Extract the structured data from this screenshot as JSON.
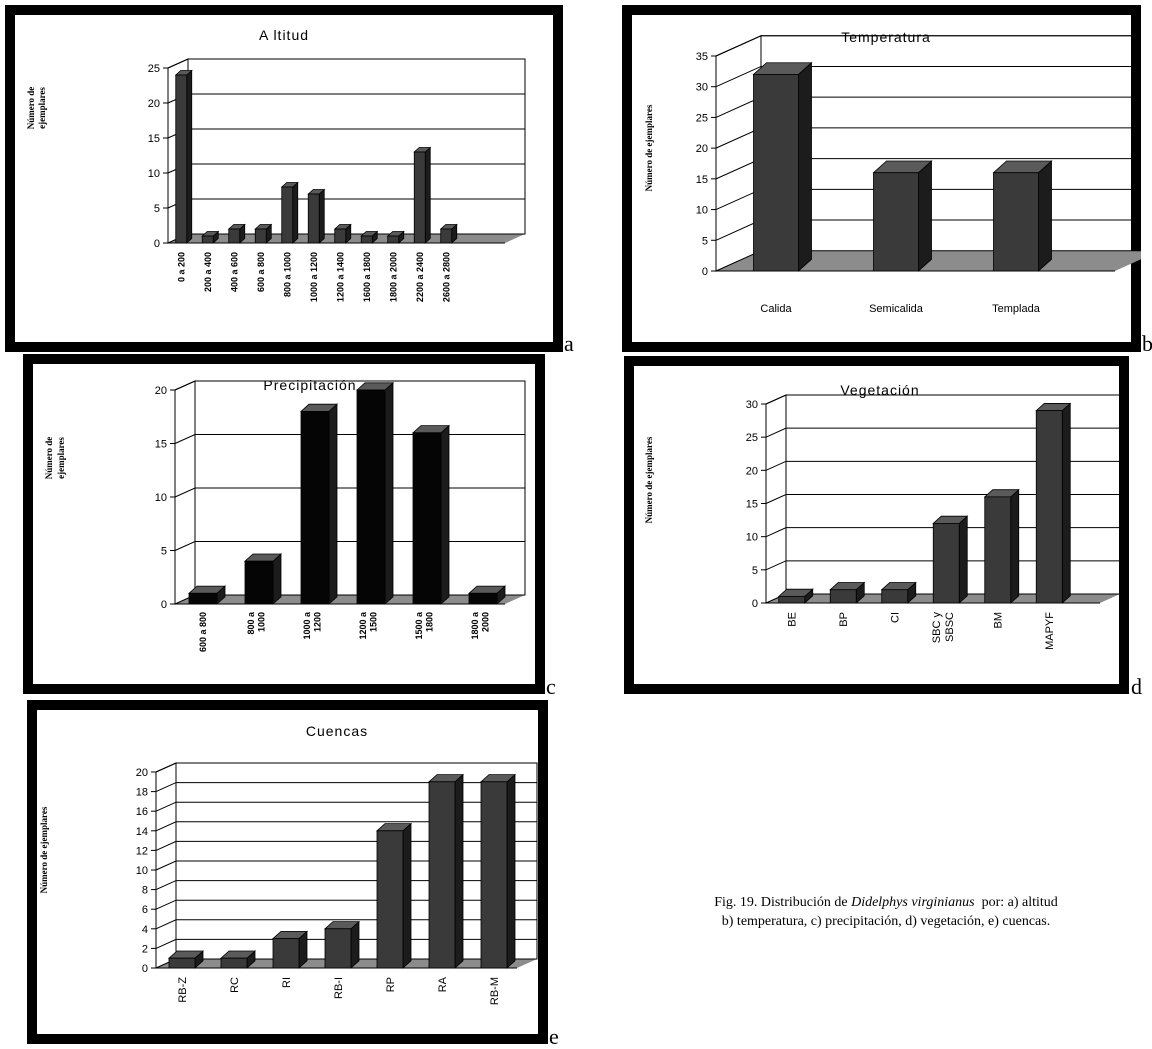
{
  "caption": {
    "prefix": "Fig. 19. Distribución de ",
    "species": "Didelphys virginianus",
    "line1_suffix": "  por: a) altitud",
    "line2": "b) temperatura, c) precipitación, d) vegetación, e) cuencas."
  },
  "colors": {
    "bar_front": "#3a3a3a",
    "bar_side": "#1c1c1c",
    "bar_top": "#5a5a5a",
    "bar_front_c": "#050505",
    "floor": "#8c8c8c",
    "frame": "#000000"
  },
  "chart_data": [
    {
      "id": "a",
      "letter": "a",
      "type": "bar",
      "title": "A ltitud",
      "ylabel": [
        "Número de",
        "ejemplares"
      ],
      "ylim": [
        0,
        25
      ],
      "yticks": [
        0,
        5,
        10,
        15,
        20,
        25
      ],
      "categories": [
        "0 a 200",
        "200 a 400",
        "400 a 600",
        "600 a 800",
        "800 a 1000",
        "1000 a 1200",
        "1200 a 1400",
        "1600 a 1800",
        "1800 a 2000",
        "2200 a 2400",
        "2600 a 2800"
      ],
      "values": [
        24,
        1,
        2,
        2,
        8,
        7,
        2,
        1,
        1,
        13,
        2
      ],
      "grid": true
    },
    {
      "id": "b",
      "letter": "b",
      "type": "bar",
      "title": "Temperatura",
      "ylabel": [
        "Número de ejemplares"
      ],
      "ylim": [
        0,
        35
      ],
      "yticks": [
        0,
        5,
        10,
        15,
        20,
        25,
        30,
        35
      ],
      "categories": [
        "Calida",
        "Semicalida",
        "Templada"
      ],
      "values": [
        32,
        16,
        16
      ],
      "grid": true
    },
    {
      "id": "c",
      "letter": "c",
      "type": "bar",
      "title": "Precipitación",
      "ylabel": [
        "Número de",
        "ejemplares"
      ],
      "ylim": [
        0,
        20
      ],
      "yticks": [
        0,
        5,
        10,
        15,
        20
      ],
      "categories": [
        [
          "600 a 800"
        ],
        [
          "800 a",
          "1000"
        ],
        [
          "1000 a",
          "1200"
        ],
        [
          "1200 a",
          "1500"
        ],
        [
          "1500 a",
          "1800"
        ],
        [
          "1800 a",
          "2000"
        ]
      ],
      "values": [
        1,
        4,
        18,
        20,
        16,
        1
      ],
      "grid": true
    },
    {
      "id": "d",
      "letter": "d",
      "type": "bar",
      "title": "Vegetación",
      "ylabel": [
        "Número de ejemplares"
      ],
      "ylim": [
        0,
        30
      ],
      "yticks": [
        0,
        5,
        10,
        15,
        20,
        25,
        30
      ],
      "categories": [
        [
          "BE"
        ],
        [
          "BP"
        ],
        [
          "CI"
        ],
        [
          "SBC y",
          "SBSC"
        ],
        [
          "BM"
        ],
        [
          "MAPYF"
        ]
      ],
      "values": [
        1,
        2,
        2,
        12,
        16,
        29
      ],
      "grid": true
    },
    {
      "id": "e",
      "letter": "e",
      "type": "bar",
      "title": "Cuencas",
      "ylabel": [
        "Número de ejemplares"
      ],
      "ylim": [
        0,
        20
      ],
      "yticks": [
        0,
        2,
        4,
        6,
        8,
        10,
        12,
        14,
        16,
        18,
        20
      ],
      "categories": [
        [
          "RB-Z"
        ],
        [
          "RC"
        ],
        [
          "RI"
        ],
        [
          "RB-I"
        ],
        [
          "RP"
        ],
        [
          "RA"
        ],
        [
          "RB-M"
        ]
      ],
      "values": [
        1,
        1,
        3,
        4,
        14,
        19,
        19
      ],
      "grid": true
    }
  ]
}
